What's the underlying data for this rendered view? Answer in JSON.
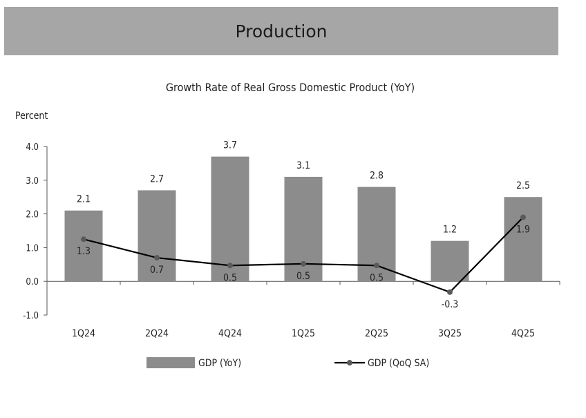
{
  "header": {
    "title": "Production"
  },
  "chart_data": {
    "type": "bar",
    "title": "Growth Rate of Real Gross Domestic Product (YoY)",
    "ylabel": "Percent",
    "xlabel": "",
    "categories": [
      "1Q24",
      "2Q24",
      "4Q24",
      "1Q25",
      "2Q25",
      "3Q25",
      "4Q25"
    ],
    "ylim": [
      -1.0,
      4.0
    ],
    "yticks": [
      "-1.0",
      "0.0",
      "1.0",
      "2.0",
      "3.0",
      "4.0"
    ],
    "grid": false,
    "legend_position": "bottom",
    "series": [
      {
        "name": "GDP (YoY)",
        "type": "bar",
        "color": "#8c8c8c",
        "values": [
          2.1,
          2.7,
          3.7,
          3.1,
          2.8,
          1.2,
          2.5
        ],
        "labels": [
          "2.1",
          "2.7",
          "3.7",
          "3.1",
          "2.8",
          "1.2",
          "2.5"
        ]
      },
      {
        "name": "GDP (QoQ SA)",
        "type": "line",
        "color": "#000000",
        "marker_color": "#5a5a5a",
        "values": [
          1.25,
          0.7,
          0.47,
          0.52,
          0.47,
          -0.32,
          1.9
        ],
        "labels": [
          "1.3",
          "0.7",
          "0.5",
          "0.5",
          "0.5",
          "-0.3",
          "1.9"
        ]
      }
    ]
  }
}
